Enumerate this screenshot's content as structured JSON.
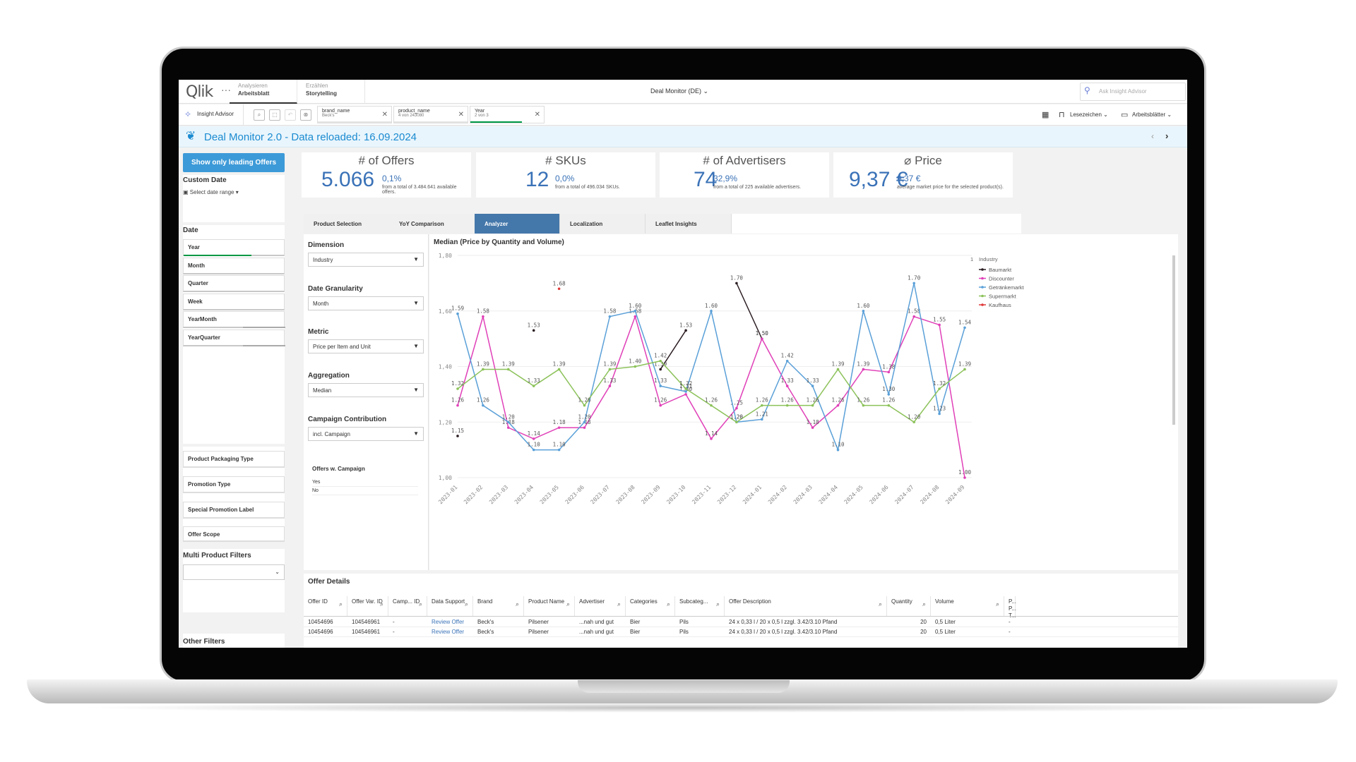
{
  "app": {
    "logo": "Qlik",
    "menu_dots": "···",
    "nav": [
      {
        "sub": "Analysieren",
        "main": "Arbeitsblatt"
      },
      {
        "sub": "Erzählen",
        "main": "Storytelling"
      }
    ],
    "title": "Deal Monitor (DE)",
    "ask_placeholder": "Ask Insight Advisor"
  },
  "toolbar": {
    "insight_advisor": "Insight Advisor",
    "chips": [
      {
        "name": "brand_name",
        "value": "Beck's"
      },
      {
        "name": "product_name",
        "value": "4 von 243080"
      },
      {
        "name": "Year",
        "value": "2 von 3"
      }
    ],
    "bookmarks": "Lesezeichen",
    "sheets": "Arbeitsblätter"
  },
  "banner": {
    "text": "Deal Monitor 2.0 - Data reloaded: 16.09.2024"
  },
  "sidebar": {
    "leading_button": "Show only leading Offers",
    "custom_date_title": "Custom Date",
    "date_range": "Select date range",
    "date_title": "Date",
    "date_filters": [
      "Year",
      "Month",
      "Quarter",
      "Week",
      "YearMonth",
      "YearQuarter"
    ],
    "other_filters": [
      "Product Packaging Type",
      "Promotion Type",
      "Special Promotion Label",
      "Offer Scope"
    ],
    "multi_title": "Multi Product Filters",
    "other_title": "Other Filters"
  },
  "kpis": [
    {
      "title": "# of Offers",
      "value": "5.066",
      "pct": "0,1%",
      "sub": "from a total of 3.484.641 available offers."
    },
    {
      "title": "# SKUs",
      "value": "12",
      "pct": "0,0%",
      "sub": "from a total of 496.034 SKUs."
    },
    {
      "title": "# of Advertisers",
      "value": "74",
      "pct": "32,9%",
      "sub": "from a total of 225 available advertisers."
    },
    {
      "title": "⌀ Price",
      "value": "9,37 €",
      "pct": "9,37 €",
      "sub": "average market price for the selected product(s)."
    }
  ],
  "tabs": [
    "Product Selection",
    "YoY Comparison",
    "Analyzer",
    "Localization",
    "Leaflet Insights"
  ],
  "config": {
    "dimension_label": "Dimension",
    "dimension": "Industry",
    "granularity_label": "Date Granularity",
    "granularity": "Month",
    "metric_label": "Metric",
    "metric": "Price per Item and Unit",
    "aggregation_label": "Aggregation",
    "aggregation": "Median",
    "campaign_label": "Campaign Contribution",
    "campaign": "incl. Campaign",
    "offers_campaign_label": "Offers w. Campaign",
    "offers_campaign_options": [
      "Yes",
      "No"
    ]
  },
  "chart_data": {
    "type": "line",
    "title": "Median (Price by Quantity and Volume)",
    "ylim": [
      1.0,
      1.8
    ],
    "yticks": [
      "1,80",
      "1,60",
      "1,40",
      "1,20",
      "1,00"
    ],
    "categories": [
      "2023-01",
      "2023-02",
      "2023-03",
      "2023-04",
      "2023-05",
      "2023-06",
      "2023-07",
      "2023-08",
      "2023-09",
      "2023-10",
      "2023-11",
      "2023-12",
      "2024-01",
      "2024-02",
      "2024-03",
      "2024-04",
      "2024-05",
      "2024-06",
      "2024-07",
      "2024-08",
      "2024-09"
    ],
    "legend_title": "Industry",
    "legend_count": "1",
    "legend_position": "top-right",
    "series": [
      {
        "name": "Baumarkt",
        "color": "#2b1d22",
        "values": [
          1.15,
          null,
          null,
          1.53,
          null,
          null,
          null,
          null,
          1.39,
          1.53,
          null,
          1.7,
          1.5,
          null,
          null,
          null,
          null,
          null,
          null,
          null,
          null
        ]
      },
      {
        "name": "Discounter",
        "color": "#e040b8",
        "values": [
          1.26,
          1.58,
          1.18,
          1.14,
          1.18,
          1.18,
          1.33,
          1.58,
          1.26,
          1.3,
          1.14,
          1.25,
          1.5,
          1.33,
          1.18,
          1.26,
          1.39,
          1.38,
          1.58,
          1.55,
          1.0
        ]
      },
      {
        "name": "Getränkemarkt",
        "color": "#5aa0d8",
        "values": [
          1.59,
          1.26,
          1.2,
          1.1,
          1.1,
          1.2,
          1.58,
          1.6,
          1.33,
          1.31,
          1.6,
          1.2,
          1.21,
          1.42,
          1.33,
          1.1,
          1.6,
          1.3,
          1.7,
          1.23,
          1.54
        ]
      },
      {
        "name": "Supermarkt",
        "color": "#8cc25a",
        "values": [
          1.32,
          1.39,
          1.39,
          1.33,
          1.39,
          1.26,
          1.39,
          1.4,
          1.42,
          1.32,
          1.26,
          1.2,
          1.26,
          1.26,
          1.26,
          1.39,
          1.26,
          1.26,
          1.2,
          1.32,
          1.39
        ]
      },
      {
        "name": "Kaufhaus",
        "color": "#e03838",
        "values": [
          null,
          null,
          null,
          null,
          1.68,
          null,
          null,
          null,
          null,
          null,
          null,
          null,
          null,
          null,
          null,
          null,
          null,
          null,
          null,
          null,
          null
        ]
      }
    ]
  },
  "table": {
    "title": "Offer Details",
    "headers": [
      "Offer ID",
      "Offer Var. ID",
      "Camp... ID",
      "Data Support",
      "Brand",
      "Product Name",
      "Advertiser",
      "Categories",
      "Subcateg...",
      "Offer Description",
      "Quantity",
      "Volume",
      "P... P... T..."
    ],
    "rows": [
      [
        "10454696",
        "104546961",
        "-",
        "Review Offer",
        "Beck's",
        "Pilsener",
        "...nah und gut",
        "Bier",
        "Pils",
        "24 x 0,33 l / 20 x 0,5 l zzgl. 3.42/3.10 Pfand",
        "20",
        "0,5 Liter",
        "-"
      ],
      [
        "10454696",
        "104546961",
        "-",
        "Review Offer",
        "Beck's",
        "Pilsener",
        "...nah und gut",
        "Bier",
        "Pils",
        "24 x 0,33 l / 20 x 0,5 l zzgl. 3.42/3.10 Pfand",
        "20",
        "0,5 Liter",
        "-"
      ]
    ]
  }
}
